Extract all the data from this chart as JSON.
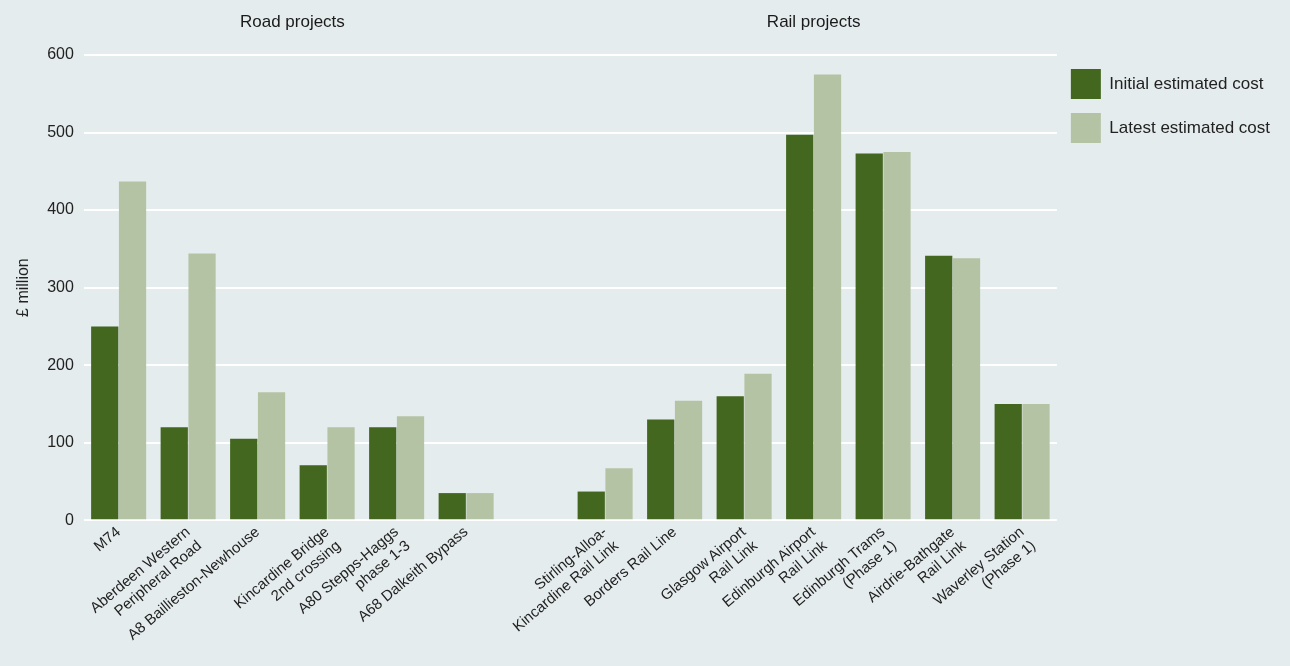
{
  "chart_data": {
    "type": "bar",
    "ylabel": "£ million",
    "annotations": [
      "Road projects",
      "Rail projects"
    ],
    "categories": [
      "M74",
      "Aberdeen Western\nPeripheral Road",
      "A8 Baillieston-Newhouse",
      "Kincardine Bridge\n2nd crossing",
      "A80 Stepps-Haggs\nphase 1-3",
      "A68 Dalkeith Bypass",
      null,
      "Stirling-Alloa-\nKincardine Rail Link",
      "Borders Rail Line",
      "Glasgow Airport\nRail Link",
      "Edinburgh Airport\nRail Link",
      "Edinburgh Trams\n(Phase 1)",
      "Airdrie-Bathgate\nRail Link",
      "Waverley Station\n(Phase 1)"
    ],
    "series": [
      {
        "name": "Initial estimated cost",
        "color": "#43671e",
        "values": [
          250,
          120,
          105,
          71,
          120,
          35,
          null,
          37,
          130,
          160,
          497,
          473,
          341,
          150
        ]
      },
      {
        "name": "Latest estimated cost",
        "color": "#b5c3a5",
        "values": [
          437,
          344,
          165,
          120,
          134,
          35,
          null,
          67,
          154,
          189,
          575,
          475,
          338,
          150
        ]
      }
    ],
    "ylim": [
      0,
      600
    ],
    "yticks": [
      0,
      100,
      200,
      300,
      400,
      500,
      600
    ],
    "grid": "y",
    "legend": "right"
  }
}
